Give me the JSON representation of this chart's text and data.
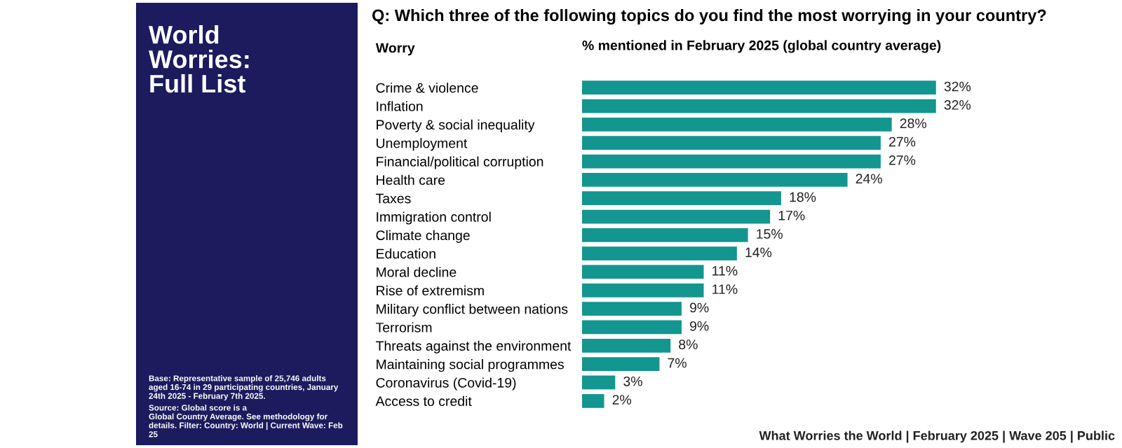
{
  "chart_data": {
    "type": "bar",
    "orientation": "horizontal",
    "title": "Q: Which three of the following topics do you find the most worrying in your country?",
    "subtitle": "World\nWorries:\nFull List",
    "ylabel": "Worry",
    "xlabel": "% mentioned in February 2025 (global country average)",
    "categories": [
      "Crime & violence",
      "Inflation",
      "Poverty & social inequality",
      "Unemployment",
      "Financial/political corruption",
      "Health care",
      "Taxes",
      "Immigration control",
      "Climate change",
      "Education",
      "Moral decline",
      "Rise of extremism",
      "Military conflict between nations",
      "Terrorism",
      "Threats against the environment",
      "Maintaining social programmes",
      "Coronavirus (Covid-19)",
      "Access to credit"
    ],
    "values": [
      32,
      32,
      28,
      27,
      27,
      24,
      18,
      17,
      15,
      14,
      11,
      11,
      9,
      9,
      8,
      7,
      3,
      2
    ],
    "value_labels": [
      "32%",
      "32%",
      "28%",
      "27%",
      "27%",
      "24%",
      "18%",
      "17%",
      "15%",
      "14%",
      "11%",
      "11%",
      "9%",
      "9%",
      "8%",
      "7%",
      "3%",
      "2%"
    ],
    "color": "#13968f",
    "tick_labels": "y",
    "grid": false,
    "legend": false,
    "annotations": [
      "Base: Representative sample of 25,746 adults\naged 16-74 in 29 participating countries, January\n24th 2025 - February 7th 2025.",
      "Source: Global score is a\nGlobal Country Average. See methodology for\ndetails. Filter: Country: World | Current Wave: Feb\n25",
      "What Worries the World | February 2025 | Wave 205 | Public"
    ]
  }
}
